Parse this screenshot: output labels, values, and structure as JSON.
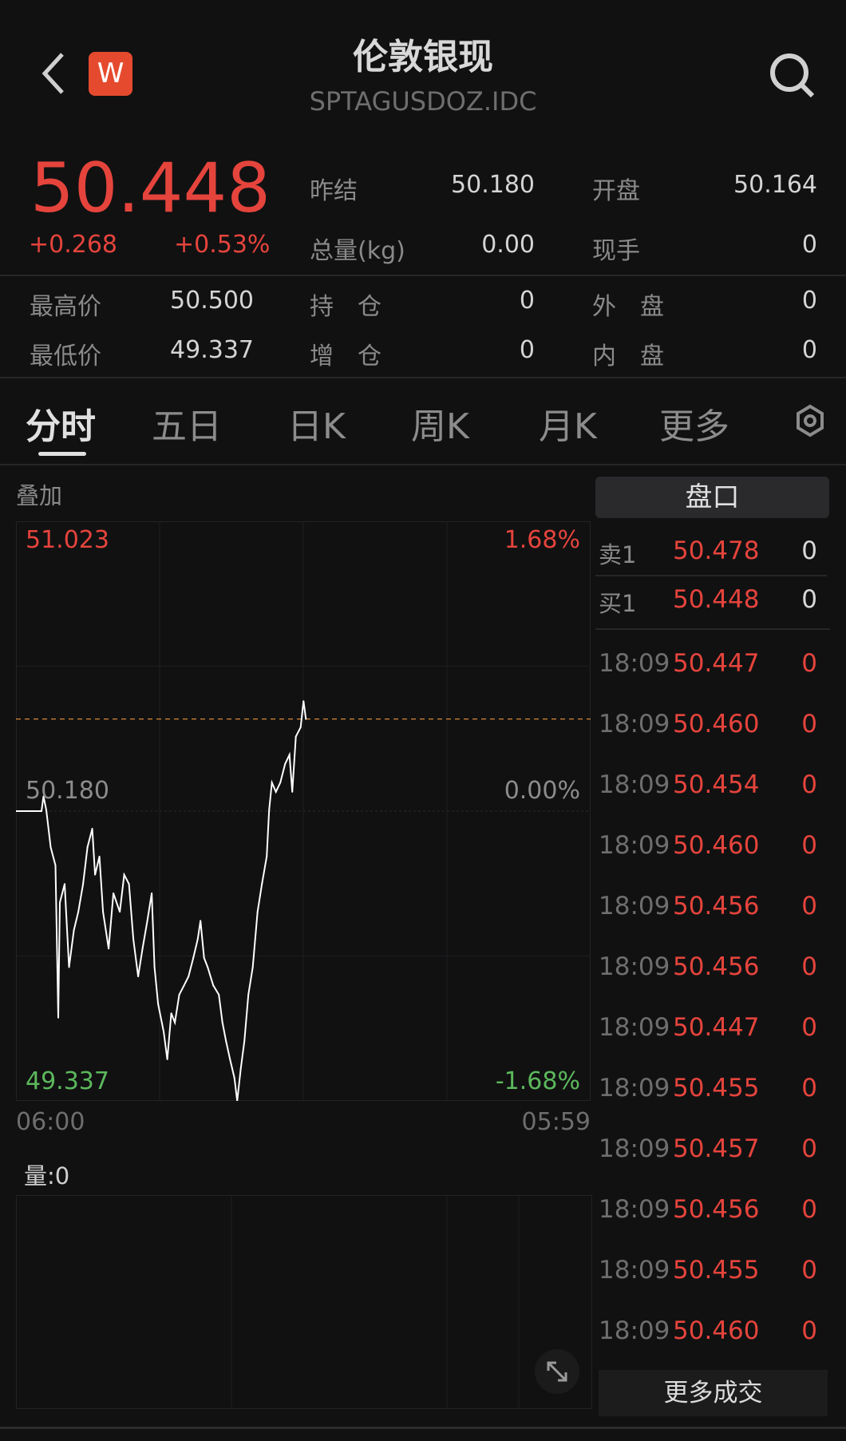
{
  "header": {
    "title": "伦敦银现",
    "code": "SPTAGUSDOZ.IDC",
    "logo_letter": "W",
    "logo_color": "#e64a2e"
  },
  "quote": {
    "price": "50.448",
    "change": "+0.268",
    "change_pct": "+0.53%",
    "stats": [
      {
        "label": "昨结",
        "value": "50.180"
      },
      {
        "label": "开盘",
        "value": "50.164"
      },
      {
        "label": "总量(kg)",
        "value": "0.00"
      },
      {
        "label": "现手",
        "value": "0"
      },
      {
        "label": "最高价",
        "value": "50.500"
      },
      {
        "label": "持　仓",
        "value": "0"
      },
      {
        "label": "外　盘",
        "value": "0"
      },
      {
        "label": "最低价",
        "value": "49.337"
      },
      {
        "label": "增　仓",
        "value": "0"
      },
      {
        "label": "内　盘",
        "value": "0"
      }
    ]
  },
  "tabs": [
    "分时",
    "五日",
    "日K",
    "周K",
    "月K",
    "更多"
  ],
  "active_tab": "分时",
  "overlay_label": "叠加",
  "orderbook": {
    "title": "盘口",
    "asks": [
      {
        "label": "卖1",
        "price": "50.478",
        "vol": "0"
      }
    ],
    "bids": [
      {
        "label": "买1",
        "price": "50.448",
        "vol": "0"
      }
    ]
  },
  "trades": [
    {
      "time": "18:09",
      "price": "50.447",
      "vol": "0"
    },
    {
      "time": "18:09",
      "price": "50.460",
      "vol": "0"
    },
    {
      "time": "18:09",
      "price": "50.454",
      "vol": "0"
    },
    {
      "time": "18:09",
      "price": "50.460",
      "vol": "0"
    },
    {
      "time": "18:09",
      "price": "50.456",
      "vol": "0"
    },
    {
      "time": "18:09",
      "price": "50.456",
      "vol": "0"
    },
    {
      "time": "18:09",
      "price": "50.447",
      "vol": "0"
    },
    {
      "time": "18:09",
      "price": "50.455",
      "vol": "0"
    },
    {
      "time": "18:09",
      "price": "50.457",
      "vol": "0"
    },
    {
      "time": "18:09",
      "price": "50.456",
      "vol": "0"
    },
    {
      "time": "18:09",
      "price": "50.455",
      "vol": "0"
    },
    {
      "time": "18:09",
      "price": "50.460",
      "vol": "0"
    }
  ],
  "more_trades_label": "更多成交",
  "volume_label": "量:0",
  "colors": {
    "up": "#e5443c",
    "down": "#5cb85c",
    "line": "#ffffff",
    "current_price_line": "#d9883a"
  },
  "chart_data": {
    "type": "line",
    "y_top_label": "51.023",
    "y_mid_label": "50.180",
    "y_bottom_label": "49.337",
    "pct_top_label": "1.68%",
    "pct_mid_label": "0.00%",
    "pct_bottom_label": "-1.68%",
    "x_start_label": "06:00",
    "x_end_label": "05:59",
    "ylim": [
      49.337,
      51.023
    ],
    "prev_close": 50.18,
    "current_price": 50.448,
    "x": [
      "06:00",
      "07:04",
      "07:09",
      "07:16",
      "07:27",
      "07:39",
      "07:46",
      "07:50",
      "08:02",
      "08:13",
      "08:25",
      "08:36",
      "08:48",
      "08:59",
      "09:11",
      "09:18",
      "09:29",
      "09:38",
      "09:52",
      "10:04",
      "10:20",
      "10:31",
      "10:43",
      "10:54",
      "11:06",
      "11:17",
      "11:29",
      "11:40",
      "11:47",
      "11:56",
      "12:10",
      "12:19",
      "12:29",
      "12:38",
      "12:49",
      "13:01",
      "13:12",
      "13:24",
      "13:35",
      "13:42",
      "13:51",
      "14:00",
      "14:14",
      "14:28",
      "14:37",
      "14:46",
      "14:56",
      "15:07",
      "15:14",
      "15:23",
      "15:32",
      "15:42",
      "15:53",
      "16:05",
      "16:16",
      "16:28",
      "16:34",
      "16:41",
      "16:51",
      "17:02",
      "17:14",
      "17:25",
      "17:32",
      "17:41",
      "17:53",
      "18:00",
      "18:06"
    ],
    "y": [
      50.18,
      50.18,
      50.223,
      50.183,
      50.075,
      50.022,
      49.579,
      49.914,
      49.968,
      49.726,
      49.834,
      49.887,
      49.968,
      50.075,
      50.129,
      49.995,
      50.048,
      49.887,
      49.78,
      49.941,
      49.887,
      49.995,
      49.968,
      49.807,
      49.699,
      49.78,
      49.861,
      49.941,
      49.726,
      49.619,
      49.538,
      49.458,
      49.592,
      49.565,
      49.646,
      49.673,
      49.699,
      49.753,
      49.807,
      49.861,
      49.753,
      49.726,
      49.673,
      49.646,
      49.565,
      49.511,
      49.458,
      49.404,
      49.337,
      49.431,
      49.511,
      49.646,
      49.726,
      49.887,
      49.968,
      50.048,
      50.183,
      50.263,
      50.236,
      50.263,
      50.317,
      50.344,
      50.236,
      50.397,
      50.424,
      50.5,
      50.448
    ]
  }
}
